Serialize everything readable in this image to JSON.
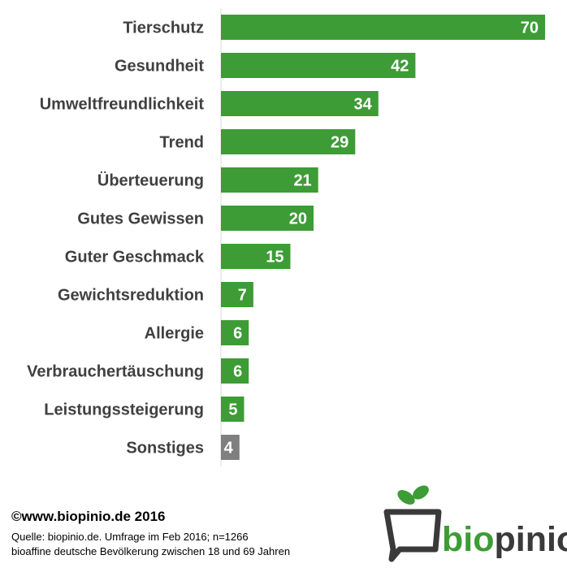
{
  "chart_data": {
    "type": "bar",
    "orientation": "horizontal",
    "categories": [
      "Tierschutz",
      "Gesundheit",
      "Umweltfreundlichkeit",
      "Trend",
      "Überteuerung",
      "Gutes Gewissen",
      "Guter Geschmack",
      "Gewichtsreduktion",
      "Allergie",
      "Verbrauchertäuschung",
      "Leistungssteigerung",
      "Sonstiges"
    ],
    "values": [
      70,
      42,
      34,
      29,
      21,
      20,
      15,
      7,
      6,
      6,
      5,
      4
    ],
    "bar_colors": [
      "#3d9c35",
      "#3d9c35",
      "#3d9c35",
      "#3d9c35",
      "#3d9c35",
      "#3d9c35",
      "#3d9c35",
      "#3d9c35",
      "#3d9c35",
      "#3d9c35",
      "#3d9c35",
      "#7f7f7f"
    ],
    "title": "",
    "xlabel": "",
    "ylabel": "",
    "xlim": [
      0,
      70
    ],
    "grid": false,
    "legend": "none"
  },
  "footer": {
    "copyright": "©www.biopinio.de 2016",
    "source": "Quelle: biopinio.de. Umfrage im Feb 2016; n=1266",
    "population": "bioaffine deutsche Bevölkerung zwischen 18 und 69 Jahren"
  },
  "logo": {
    "text_part1": "bio",
    "text_part2": "pinio",
    "color_green": "#3d9c35",
    "color_dark": "#3a3a3a"
  }
}
